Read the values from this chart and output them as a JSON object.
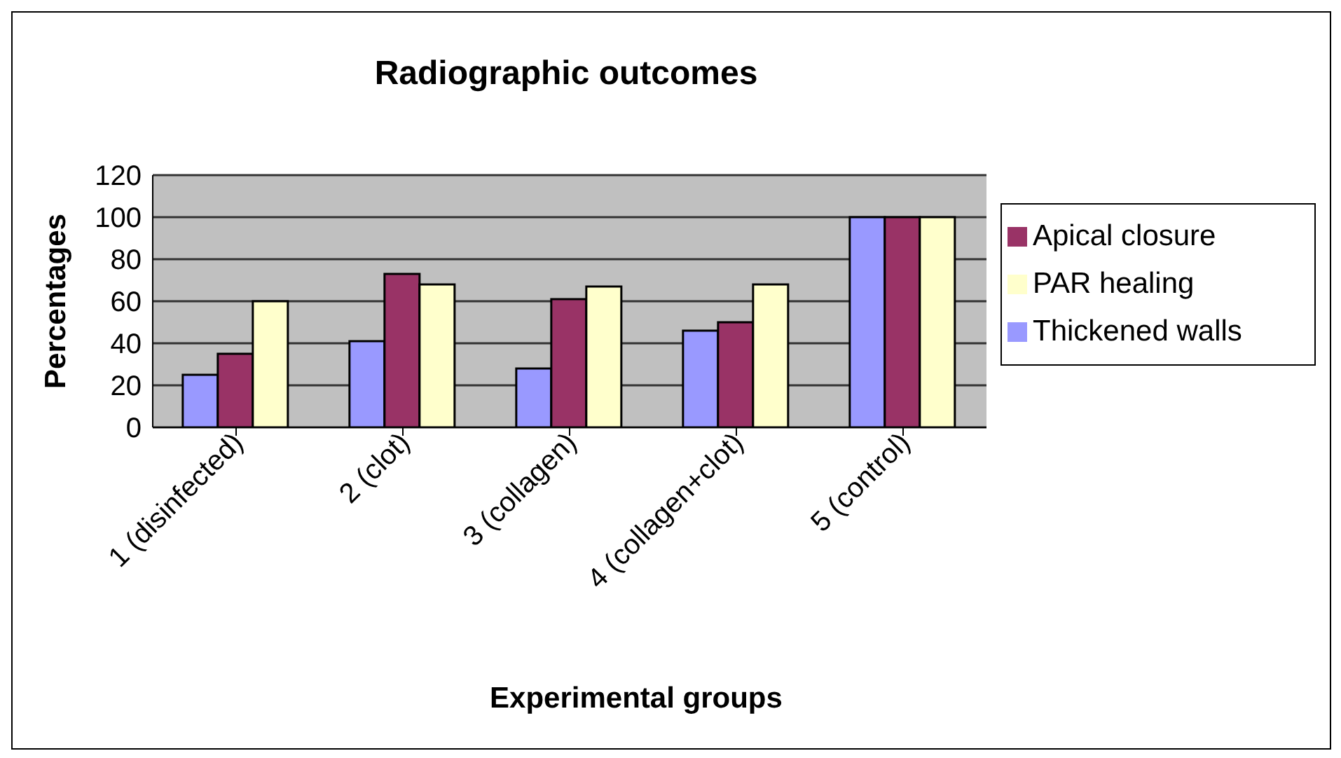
{
  "chart_data": {
    "type": "bar",
    "title": "Radiographic outcomes",
    "xlabel": "Experimental groups",
    "ylabel": "Percentages",
    "categories": [
      "1 (disinfected)",
      "2 (clot)",
      "3 (collagen)",
      "4 (collagen+clot)",
      "5 (control)"
    ],
    "series": [
      {
        "name": "Thickened walls",
        "color": "#9999ff",
        "values": [
          25,
          41,
          28,
          46,
          100
        ]
      },
      {
        "name": "Apical closure",
        "color": "#993366",
        "values": [
          35,
          73,
          61,
          50,
          100
        ]
      },
      {
        "name": "PAR healing",
        "color": "#ffffcc",
        "values": [
          60,
          68,
          67,
          68,
          100
        ]
      }
    ],
    "ylim": [
      0,
      120
    ],
    "yticks": [
      0,
      20,
      40,
      60,
      80,
      100,
      120
    ],
    "grid": "y",
    "legend": "right"
  }
}
